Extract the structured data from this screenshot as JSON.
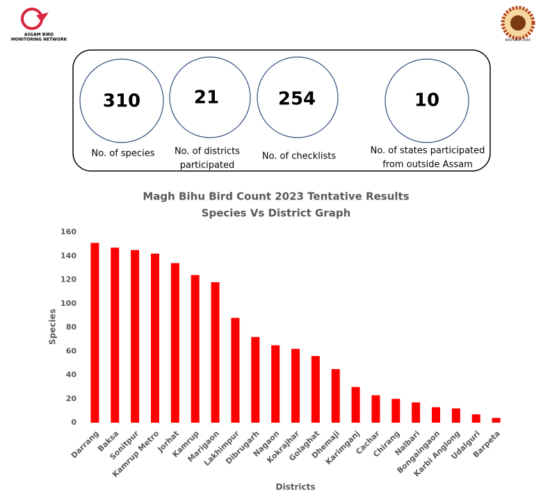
{
  "header": {
    "left_logo_line1": "ASSAM BIRD",
    "left_logo_line2": "MONITORING NETWORK",
    "right_logo_text": "BIHU BIRD COUNT"
  },
  "stats": [
    {
      "value": "310",
      "label": "No. of species"
    },
    {
      "value": "21",
      "label_line1": "No. of districts",
      "label_line2": "participated"
    },
    {
      "value": "254",
      "label": "No. of checklists"
    },
    {
      "value": "10",
      "label_line1": "No. of states participated",
      "label_line2": "from outside Assam"
    }
  ],
  "chart_data": {
    "type": "bar",
    "title": "Magh Bihu Bird Count 2023 Tentative Results",
    "subtitle": "Species Vs District Graph",
    "x_label": "Districts",
    "y_label": "Species",
    "categories": [
      "Darrang",
      "Baksa",
      "Sonitpur",
      "Kamrup Metro",
      "Jorhat",
      "Kamrup",
      "Marigaon",
      "Lakhimpur",
      "Dibrugarh",
      "Nagaon",
      "Kokrajhar",
      "Golaghat",
      "Dhemaji",
      "Karimganj",
      "Cachar",
      "Chirang",
      "Nalbari",
      "Bongaingaon",
      "Karbi Anglong",
      "Udalguri",
      "Barpeta"
    ],
    "values": [
      151,
      147,
      145,
      142,
      134,
      124,
      118,
      88,
      72,
      65,
      62,
      56,
      45,
      30,
      23,
      20,
      17,
      13,
      12,
      7,
      4
    ],
    "color": "#ff0000",
    "ylim": [
      0,
      160
    ],
    "yticks": [
      0,
      20,
      40,
      60,
      80,
      100,
      120,
      140,
      160
    ],
    "grid": false
  }
}
